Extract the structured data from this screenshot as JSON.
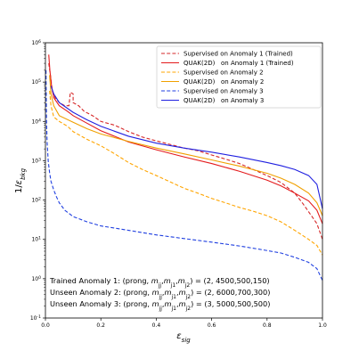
{
  "chart_data": {
    "type": "line",
    "title": "",
    "xlabel": "ε_sig",
    "ylabel": "1/ε_bkg",
    "xlim": [
      0.0,
      1.0
    ],
    "ylim": [
      0.1,
      1000000
    ],
    "y_scale": "log",
    "grid": false,
    "legend_position": "top-right",
    "x_ticks": [
      "0.0",
      "0.2",
      "0.4",
      "0.6",
      "0.8",
      "1.0"
    ],
    "y_ticks": [
      {
        "exp": "-1",
        "value": 0.1
      },
      {
        "exp": "0",
        "value": 1
      },
      {
        "exp": "1",
        "value": 10
      },
      {
        "exp": "2",
        "value": 100
      },
      {
        "exp": "3",
        "value": 1000
      },
      {
        "exp": "4",
        "value": 10000
      },
      {
        "exp": "5",
        "value": 100000
      },
      {
        "exp": "6",
        "value": 1000000
      }
    ],
    "series": [
      {
        "name": "Supervised on Anomaly 1 (Trained)",
        "color": "#d62728",
        "dash": "dashed",
        "points": [
          [
            0.012,
            300000
          ],
          [
            0.018,
            150000
          ],
          [
            0.025,
            60000
          ],
          [
            0.035,
            40000
          ],
          [
            0.05,
            30000
          ],
          [
            0.07,
            25000
          ],
          [
            0.085,
            25000
          ],
          [
            0.09,
            55000
          ],
          [
            0.1,
            50000
          ],
          [
            0.1,
            30000
          ],
          [
            0.12,
            25000
          ],
          [
            0.14,
            18000
          ],
          [
            0.17,
            14000
          ],
          [
            0.2,
            10000
          ],
          [
            0.25,
            8000
          ],
          [
            0.3,
            5500
          ],
          [
            0.35,
            4000
          ],
          [
            0.4,
            3200
          ],
          [
            0.45,
            2600
          ],
          [
            0.5,
            2100
          ],
          [
            0.55,
            1800
          ],
          [
            0.6,
            1400
          ],
          [
            0.65,
            1100
          ],
          [
            0.7,
            850
          ],
          [
            0.75,
            600
          ],
          [
            0.8,
            420
          ],
          [
            0.85,
            280
          ],
          [
            0.9,
            150
          ],
          [
            0.93,
            80
          ],
          [
            0.96,
            40
          ],
          [
            0.98,
            25
          ],
          [
            1.0,
            10
          ]
        ]
      },
      {
        "name": "QUAK(2D)   on Anomaly 1 (Trained)",
        "color": "#e41a1c",
        "dash": "solid",
        "points": [
          [
            0.012,
            500000
          ],
          [
            0.016,
            200000
          ],
          [
            0.022,
            80000
          ],
          [
            0.03,
            40000
          ],
          [
            0.05,
            25000
          ],
          [
            0.08,
            18000
          ],
          [
            0.1,
            14000
          ],
          [
            0.15,
            9000
          ],
          [
            0.2,
            5800
          ],
          [
            0.3,
            3000
          ],
          [
            0.4,
            1900
          ],
          [
            0.5,
            1250
          ],
          [
            0.6,
            850
          ],
          [
            0.7,
            540
          ],
          [
            0.8,
            320
          ],
          [
            0.85,
            230
          ],
          [
            0.9,
            150
          ],
          [
            0.95,
            95
          ],
          [
            0.98,
            55
          ],
          [
            1.0,
            25
          ]
        ]
      },
      {
        "name": "Supervised on Anomaly 2",
        "color": "#ffa500",
        "dash": "dashed",
        "points": [
          [
            0.015,
            60000
          ],
          [
            0.02,
            25000
          ],
          [
            0.03,
            13000
          ],
          [
            0.05,
            10000
          ],
          [
            0.08,
            7500
          ],
          [
            0.1,
            5500
          ],
          [
            0.15,
            3500
          ],
          [
            0.2,
            2400
          ],
          [
            0.25,
            1500
          ],
          [
            0.3,
            900
          ],
          [
            0.35,
            600
          ],
          [
            0.4,
            420
          ],
          [
            0.45,
            290
          ],
          [
            0.5,
            200
          ],
          [
            0.55,
            150
          ],
          [
            0.6,
            110
          ],
          [
            0.65,
            85
          ],
          [
            0.7,
            65
          ],
          [
            0.75,
            52
          ],
          [
            0.8,
            40
          ],
          [
            0.85,
            28
          ],
          [
            0.9,
            17
          ],
          [
            0.95,
            10
          ],
          [
            0.98,
            7
          ],
          [
            1.0,
            4
          ]
        ]
      },
      {
        "name": "QUAK(2D)   on Anomaly 2",
        "color": "#f0a000",
        "dash": "solid",
        "points": [
          [
            0.015,
            150000
          ],
          [
            0.02,
            50000
          ],
          [
            0.03,
            25000
          ],
          [
            0.05,
            14000
          ],
          [
            0.1,
            9500
          ],
          [
            0.15,
            6500
          ],
          [
            0.2,
            4800
          ],
          [
            0.3,
            3100
          ],
          [
            0.4,
            2100
          ],
          [
            0.5,
            1500
          ],
          [
            0.6,
            1050
          ],
          [
            0.7,
            730
          ],
          [
            0.8,
            480
          ],
          [
            0.85,
            360
          ],
          [
            0.9,
            250
          ],
          [
            0.95,
            150
          ],
          [
            0.98,
            85
          ],
          [
            1.0,
            40
          ]
        ]
      },
      {
        "name": "Supervised on Anomaly 3",
        "color": "#1f3fe0",
        "dash": "dashed",
        "points": [
          [
            0.002,
            200000
          ],
          [
            0.004,
            10000
          ],
          [
            0.006,
            3000
          ],
          [
            0.01,
            1000
          ],
          [
            0.015,
            500
          ],
          [
            0.02,
            300
          ],
          [
            0.03,
            180
          ],
          [
            0.04,
            120
          ],
          [
            0.05,
            85
          ],
          [
            0.07,
            55
          ],
          [
            0.1,
            38
          ],
          [
            0.15,
            28
          ],
          [
            0.2,
            22
          ],
          [
            0.3,
            17
          ],
          [
            0.4,
            13
          ],
          [
            0.5,
            10.5
          ],
          [
            0.6,
            8.5
          ],
          [
            0.7,
            6.8
          ],
          [
            0.8,
            5.2
          ],
          [
            0.85,
            4.5
          ],
          [
            0.9,
            3.5
          ],
          [
            0.95,
            2.6
          ],
          [
            0.98,
            1.8
          ],
          [
            1.0,
            0.9
          ]
        ]
      },
      {
        "name": "QUAK(2D)   on Anomaly 3",
        "color": "#2020e0",
        "dash": "solid",
        "points": [
          [
            0.02,
            80000
          ],
          [
            0.03,
            50000
          ],
          [
            0.05,
            30000
          ],
          [
            0.1,
            17000
          ],
          [
            0.15,
            11000
          ],
          [
            0.2,
            7500
          ],
          [
            0.3,
            4200
          ],
          [
            0.4,
            2800
          ],
          [
            0.5,
            2100
          ],
          [
            0.6,
            1650
          ],
          [
            0.7,
            1250
          ],
          [
            0.8,
            900
          ],
          [
            0.85,
            750
          ],
          [
            0.9,
            600
          ],
          [
            0.95,
            420
          ],
          [
            0.98,
            250
          ],
          [
            1.0,
            60
          ]
        ]
      }
    ],
    "annotations": [
      "Trained Anomaly 1: (prong, m_jj,m_j1,m_j2) = (2, 4500,500,150)",
      "Unseen Anomaly 2: (prong, m_jj,m_j1,m_j2) = (2, 6000,700,300)",
      "Unseen Anomaly 3: (prong, m_jj,m_j1,m_j2) = (3, 5000,500,500)"
    ]
  }
}
